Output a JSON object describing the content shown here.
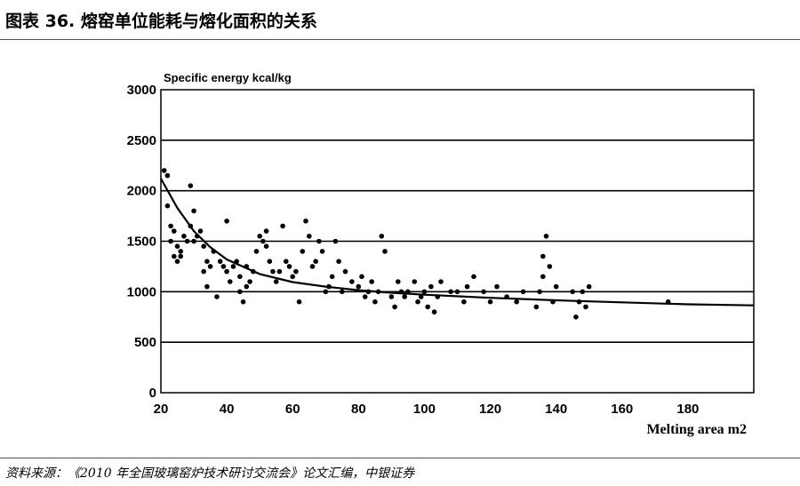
{
  "figure_title": "图表 36. 熔窑单位能耗与熔化面积的关系",
  "source_note": "资料来源：《2010 年全国玻璃窑炉技术研讨交流会》论文汇编，中银证券",
  "chart_data": {
    "type": "scatter",
    "title": "",
    "ylabel": "Specific energy  kcal/kg",
    "xlabel": "Melting area m2",
    "xlim": [
      20,
      200
    ],
    "ylim": [
      0,
      3000
    ],
    "x_ticks": [
      20,
      40,
      60,
      80,
      100,
      120,
      140,
      160,
      180
    ],
    "y_ticks": [
      0,
      500,
      1000,
      1500,
      2000,
      2500,
      3000
    ],
    "grid": "horizontal",
    "series": [
      {
        "x": [
          21,
          22,
          22,
          23,
          23,
          24,
          24,
          25,
          25,
          26,
          26,
          27,
          28,
          29,
          29,
          30,
          30,
          31,
          32,
          33,
          33,
          34,
          34,
          35,
          36,
          37,
          38,
          39,
          40,
          40,
          41,
          42,
          43,
          44,
          44,
          45,
          46,
          46,
          47,
          48,
          49,
          50,
          51,
          52,
          52,
          53,
          54,
          55,
          56,
          57,
          58,
          59,
          60,
          61,
          62,
          63,
          64,
          65,
          66,
          67,
          68,
          69,
          70,
          71,
          72,
          73,
          74,
          75,
          76,
          78,
          80,
          81,
          82,
          83,
          84,
          85,
          86,
          87,
          88,
          90,
          91,
          92,
          93,
          94,
          95,
          97,
          98,
          99,
          100,
          101,
          102,
          103,
          104,
          105,
          108,
          110,
          112,
          113,
          115,
          118,
          120,
          122,
          125,
          128,
          130,
          134,
          135,
          136,
          136,
          137,
          138,
          139,
          140,
          145,
          146,
          147,
          148,
          149,
          150,
          174
        ],
        "y": [
          2200,
          2150,
          1850,
          1650,
          1500,
          1600,
          1350,
          1450,
          1300,
          1400,
          1350,
          1550,
          1500,
          2050,
          1650,
          1800,
          1500,
          1550,
          1600,
          1450,
          1200,
          1300,
          1050,
          1250,
          1400,
          950,
          1300,
          1250,
          1200,
          1700,
          1100,
          1250,
          1300,
          1000,
          1150,
          900,
          1250,
          1050,
          1100,
          1200,
          1400,
          1550,
          1500,
          1600,
          1450,
          1300,
          1200,
          1100,
          1200,
          1650,
          1300,
          1250,
          1150,
          1200,
          900,
          1400,
          1700,
          1550,
          1250,
          1300,
          1500,
          1400,
          1000,
          1050,
          1150,
          1500,
          1300,
          1000,
          1200,
          1100,
          1050,
          1150,
          950,
          1000,
          1100,
          900,
          1000,
          1550,
          1400,
          950,
          850,
          1100,
          1000,
          950,
          1000,
          1100,
          900,
          950,
          1000,
          850,
          1050,
          800,
          950,
          1100,
          1000,
          1000,
          900,
          1050,
          1150,
          1000,
          900,
          1050,
          950,
          900,
          1000,
          850,
          1000,
          1150,
          1350,
          1550,
          1250,
          900,
          1050,
          1000,
          750,
          900,
          1000,
          850,
          1050,
          900
        ],
        "color": "#000000"
      }
    ],
    "trend_line": {
      "x": [
        20,
        25,
        30,
        35,
        40,
        50,
        60,
        70,
        80,
        90,
        100,
        120,
        140,
        160,
        180,
        200
      ],
      "y": [
        2120,
        1830,
        1600,
        1440,
        1320,
        1175,
        1095,
        1050,
        1015,
        990,
        970,
        940,
        915,
        895,
        875,
        865
      ],
      "color": "#000000"
    }
  }
}
